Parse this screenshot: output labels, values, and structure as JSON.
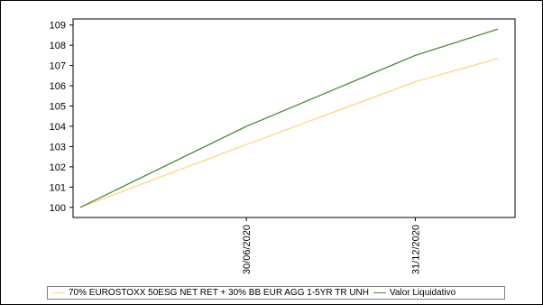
{
  "chart_data": {
    "type": "line",
    "x": [
      "01/01/2020",
      "30/06/2020",
      "31/12/2020",
      "31/03/2021"
    ],
    "x_ticks": [
      "30/06/2020",
      "31/12/2020"
    ],
    "x_range": [
      "01/01/2020",
      "31/03/2021"
    ],
    "y_ticks": [
      100,
      101,
      102,
      103,
      104,
      105,
      106,
      107,
      108,
      109
    ],
    "ylim": [
      99.5,
      109.3
    ],
    "grid": false,
    "legend_position": "bottom",
    "series": [
      {
        "name": "70% EUROSTOXX 50ESG NET RET + 30% BB EUR AGG 1-5YR TR UNH",
        "color": "#FFD480",
        "values": [
          100,
          103.1,
          106.2,
          107.35
        ]
      },
      {
        "name": "Valor Liquidativo",
        "color": "#4C8C3C",
        "values": [
          100,
          104.0,
          107.5,
          108.8
        ]
      }
    ]
  }
}
